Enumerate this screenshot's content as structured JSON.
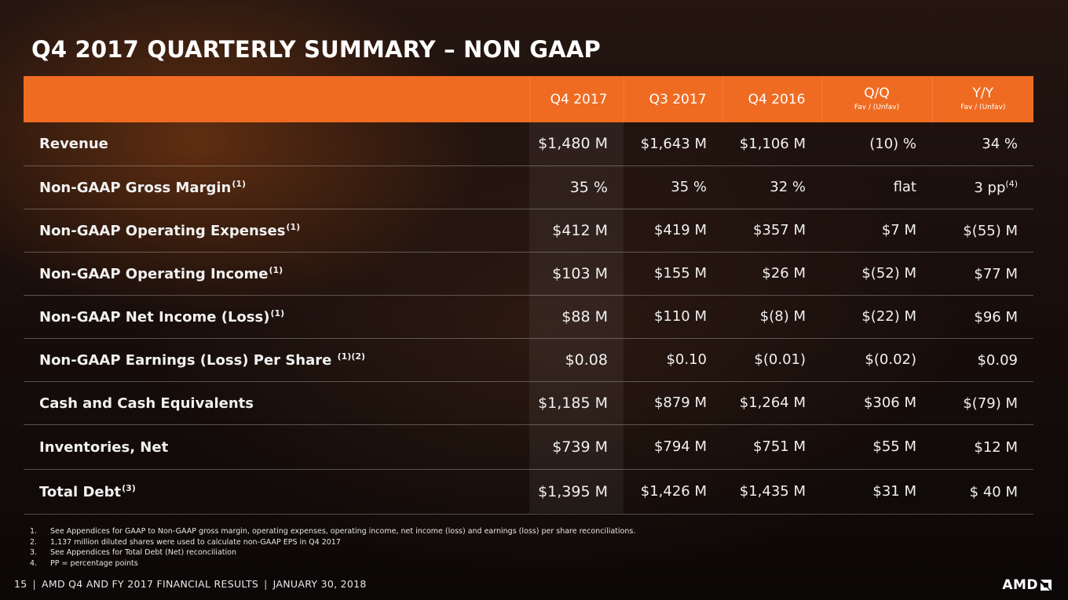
{
  "title": "Q4 2017 QUARTERLY SUMMARY – NON GAAP",
  "table": {
    "headers": {
      "label": "",
      "q4_2017": "Q4 2017",
      "q3_2017": "Q3 2017",
      "q4_2016": "Q4 2016",
      "qq": "Q/Q",
      "qq_sub": "Fav / (Unfav)",
      "yy": "Y/Y",
      "yy_sub": "Fav / (Unfav)"
    },
    "rows": [
      {
        "label": "Revenue",
        "label_sup": "",
        "q4_2017": "$1,480 M",
        "q3_2017": "$1,643 M",
        "q4_2016": "$1,106 M",
        "qq": "(10) %",
        "yy": "34 %",
        "yy_sup": ""
      },
      {
        "label": "Non-GAAP Gross Margin",
        "label_sup": "(1)",
        "q4_2017": "35 %",
        "q3_2017": "35 %",
        "q4_2016": "32 %",
        "qq": "flat",
        "yy": "3 pp",
        "yy_sup": "(4)"
      },
      {
        "label": "Non-GAAP Operating Expenses",
        "label_sup": "(1)",
        "q4_2017": "$412 M",
        "q3_2017": "$419 M",
        "q4_2016": "$357 M",
        "qq": "$7 M",
        "yy": "$(55) M",
        "yy_sup": ""
      },
      {
        "label": "Non-GAAP Operating Income",
        "label_sup": "(1)",
        "q4_2017": "$103 M",
        "q3_2017": "$155 M",
        "q4_2016": "$26 M",
        "qq": "$(52) M",
        "yy": "$77 M",
        "yy_sup": ""
      },
      {
        "label": "Non-GAAP Net Income (Loss)",
        "label_sup": "(1)",
        "q4_2017": "$88 M",
        "q3_2017": "$110 M",
        "q4_2016": "$(8) M",
        "qq": "$(22) M",
        "yy": "$96 M",
        "yy_sup": ""
      },
      {
        "label": "Non-GAAP Earnings (Loss) Per Share ",
        "label_sup": "(1)(2)",
        "q4_2017": "$0.08",
        "q3_2017": "$0.10",
        "q4_2016": "$(0.01)",
        "qq": "$(0.02)",
        "yy": "$0.09",
        "yy_sup": ""
      },
      {
        "label": "Cash and Cash Equivalents",
        "label_sup": "",
        "q4_2017": "$1,185 M",
        "q3_2017": "$879 M",
        "q4_2016": "$1,264 M",
        "qq": "$306 M",
        "yy": "$(79) M",
        "yy_sup": ""
      },
      {
        "label": "Inventories, Net",
        "label_sup": "",
        "q4_2017": "$739 M",
        "q3_2017": "$794 M",
        "q4_2016": "$751 M",
        "qq": "$55 M",
        "yy": "$12 M",
        "yy_sup": ""
      },
      {
        "label": "Total Debt",
        "label_sup": "(3)",
        "q4_2017": "$1,395 M",
        "q3_2017": "$1,426 M",
        "q4_2016": "$1,435 M",
        "qq": "$31 M",
        "yy": "$ 40 M",
        "yy_sup": ""
      }
    ]
  },
  "footnotes": [
    {
      "num": "1.",
      "text": "See Appendices for GAAP to Non-GAAP gross margin, operating expenses, operating income,  net income (loss) and earnings (loss) per share reconciliations."
    },
    {
      "num": "2.",
      "text": "1,137 million diluted shares were used to calculate non-GAAP EPS in Q4 2017"
    },
    {
      "num": "3.",
      "text": "See Appendices for Total Debt (Net) reconciliation"
    },
    {
      "num": "4.",
      "text": "PP = percentage points"
    }
  ],
  "footer": {
    "page_number": "15",
    "title": "AMD Q4 AND FY 2017 FINANCIAL RESULTS",
    "date": "JANUARY 30, 2018",
    "separator": "|"
  },
  "logo": {
    "wordmark": "AMD",
    "icon": "amd-arrow-icon"
  },
  "colors": {
    "header_orange": "#ef6b22",
    "text": "#ffffff"
  }
}
